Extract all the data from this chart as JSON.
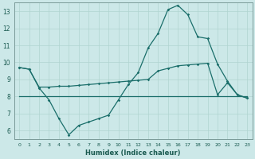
{
  "xlabel": "Humidex (Indice chaleur)",
  "bg_color": "#cce8e8",
  "grid_color": "#b0d4d0",
  "line_color": "#1a6e6a",
  "xlim": [
    -0.5,
    23.5
  ],
  "ylim": [
    5.5,
    13.5
  ],
  "yticks": [
    6,
    7,
    8,
    9,
    10,
    11,
    12,
    13
  ],
  "xticks": [
    0,
    1,
    2,
    3,
    4,
    5,
    6,
    7,
    8,
    9,
    10,
    11,
    12,
    13,
    14,
    15,
    16,
    17,
    18,
    19,
    20,
    21,
    22,
    23
  ],
  "line1_x": [
    0,
    1,
    2,
    3,
    4,
    5,
    6,
    7,
    8,
    9,
    10,
    11,
    12,
    13,
    14,
    15,
    16,
    17,
    18,
    19,
    20,
    21,
    22,
    23
  ],
  "line1_y": [
    9.7,
    9.6,
    8.5,
    7.8,
    6.7,
    5.75,
    6.3,
    6.5,
    6.7,
    6.9,
    7.8,
    8.7,
    9.4,
    10.85,
    11.7,
    13.1,
    13.35,
    12.8,
    11.5,
    11.4,
    9.9,
    8.9,
    8.1,
    7.9
  ],
  "line2_x": [
    0,
    1,
    2,
    3,
    4,
    5,
    6,
    7,
    8,
    9,
    10,
    11,
    12,
    13,
    14,
    15,
    16,
    17,
    18,
    19,
    20,
    21,
    22,
    23
  ],
  "line2_y": [
    9.7,
    9.6,
    8.55,
    8.55,
    8.6,
    8.6,
    8.65,
    8.7,
    8.75,
    8.8,
    8.85,
    8.9,
    8.95,
    9.0,
    9.5,
    9.65,
    9.8,
    9.85,
    9.9,
    9.95,
    8.1,
    8.8,
    8.1,
    7.9
  ],
  "line3_x": [
    0,
    23
  ],
  "line3_y": [
    8.0,
    8.0
  ]
}
